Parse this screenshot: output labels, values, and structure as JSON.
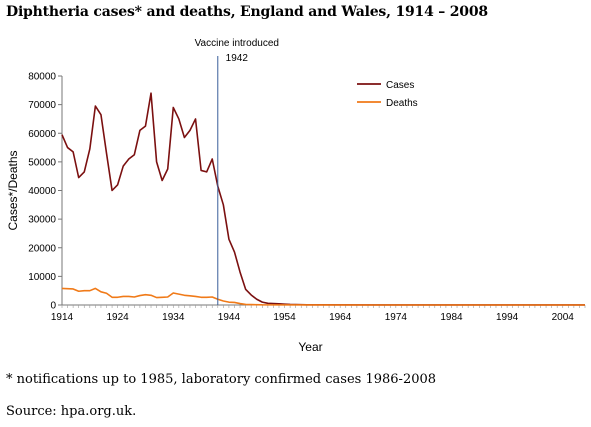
{
  "page": {
    "title": "Diphtheria cases* and deaths, England and Wales, 1914 – 2008",
    "footnote": "* notifications up to 1985, laboratory confirmed cases 1986-2008",
    "source": "Source: hpa.org.uk."
  },
  "chart_data": {
    "type": "line",
    "title": "Diphtheria cases* and deaths, England and Wales, 1914 – 2008",
    "xlabel": "Year",
    "ylabel": "Cases*/Deaths",
    "xlim": [
      1914,
      2008
    ],
    "ylim": [
      0,
      80000
    ],
    "x_ticks": [
      1914,
      1924,
      1934,
      1944,
      1954,
      1964,
      1974,
      1984,
      1994,
      2004
    ],
    "y_ticks": [
      0,
      10000,
      20000,
      30000,
      40000,
      50000,
      60000,
      70000,
      80000
    ],
    "legend_position": "top-right",
    "grid": false,
    "annotation": {
      "x": 1942,
      "text_line1": "Vaccine introduced",
      "text_line2": "1942"
    },
    "series": [
      {
        "name": "Cases",
        "color": "#7b1010",
        "x": [
          1914,
          1915,
          1916,
          1917,
          1918,
          1919,
          1920,
          1921,
          1922,
          1923,
          1924,
          1925,
          1926,
          1927,
          1928,
          1929,
          1930,
          1931,
          1932,
          1933,
          1934,
          1935,
          1936,
          1937,
          1938,
          1939,
          1940,
          1941,
          1942,
          1943,
          1944,
          1945,
          1946,
          1947,
          1948,
          1949,
          1950,
          1951,
          1952,
          1953,
          1954,
          1955,
          1956,
          1957,
          1958,
          1960,
          1970,
          1980,
          1990,
          2000,
          2008
        ],
        "values": [
          59500,
          55000,
          53500,
          44500,
          46500,
          54500,
          69500,
          66500,
          53000,
          40000,
          42000,
          48500,
          51000,
          52500,
          61000,
          62500,
          74000,
          50000,
          43500,
          47500,
          69000,
          65000,
          58500,
          61000,
          65000,
          47000,
          46500,
          51000,
          41500,
          35000,
          23000,
          18500,
          11500,
          5500,
          3500,
          2000,
          1000,
          600,
          500,
          400,
          300,
          200,
          150,
          100,
          80,
          50,
          20,
          10,
          10,
          10,
          10
        ]
      },
      {
        "name": "Deaths",
        "color": "#f07a18",
        "x": [
          1914,
          1915,
          1916,
          1917,
          1918,
          1919,
          1920,
          1921,
          1922,
          1923,
          1924,
          1925,
          1926,
          1927,
          1928,
          1929,
          1930,
          1931,
          1932,
          1933,
          1934,
          1935,
          1936,
          1937,
          1938,
          1939,
          1940,
          1941,
          1942,
          1943,
          1944,
          1945,
          1946,
          1947,
          1948,
          1950,
          1960,
          1970,
          1980,
          1990,
          2000,
          2008
        ],
        "values": [
          5800,
          5700,
          5600,
          4800,
          5000,
          5000,
          5800,
          4600,
          4100,
          2700,
          2700,
          3000,
          3000,
          2800,
          3300,
          3600,
          3400,
          2600,
          2700,
          2800,
          4200,
          3800,
          3400,
          3200,
          3000,
          2700,
          2700,
          2800,
          2000,
          1400,
          1000,
          900,
          500,
          200,
          150,
          50,
          10,
          5,
          5,
          5,
          5,
          5
        ]
      }
    ]
  }
}
